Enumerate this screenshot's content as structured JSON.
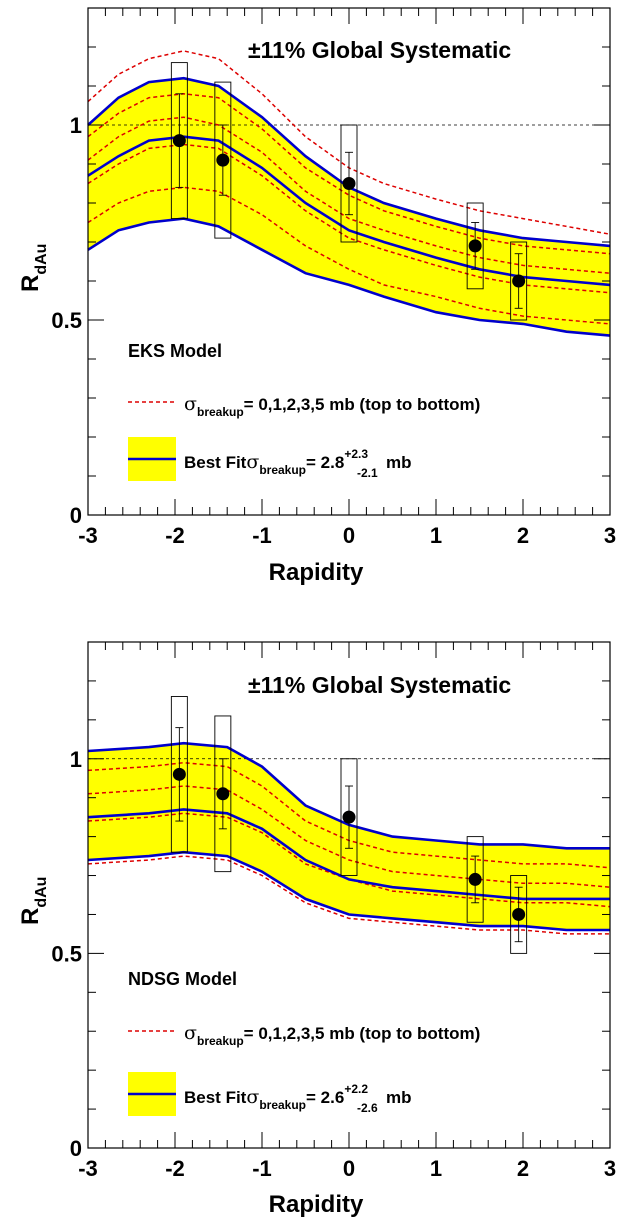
{
  "chart_data": [
    {
      "type": "line",
      "model_label": "EKS Model",
      "systematic_label": "±11% Global Systematic",
      "xlabel": "Rapidity",
      "ylabel": "R",
      "ylabel_sub": "dAu",
      "xlim": [
        -3,
        3
      ],
      "ylim": [
        0,
        1.3
      ],
      "x_ticks": [
        "-3",
        "-2",
        "-1",
        "0",
        "1",
        "2",
        "3"
      ],
      "y_ticks": [
        "0",
        "0.5",
        "1"
      ],
      "reference_line": 1.0,
      "legend": {
        "dashed": {
          "sigma": "σ",
          "sub": "breakup",
          "text": "= 0,1,2,3,5 mb (top to bottom)"
        },
        "fit": {
          "prefix": "Best Fit",
          "sigma": "σ",
          "sub": "breakup",
          "eq": "= 2.8",
          "sup": "+2.3",
          "low": "-2.1",
          "unit": "mb"
        }
      },
      "colors": {
        "band": "#ffff00",
        "fit_line": "#0000cc",
        "dashed": "#dd0000"
      },
      "x": [
        -3,
        -2.65,
        -2.3,
        -1.9,
        -1.5,
        -1.0,
        -0.5,
        0.0,
        0.4,
        1.0,
        1.5,
        2.0,
        2.5,
        3.0
      ],
      "series": [
        {
          "name": "σ = 0 mb",
          "style": "dashed",
          "values": [
            1.06,
            1.13,
            1.17,
            1.19,
            1.17,
            1.08,
            0.97,
            0.89,
            0.85,
            0.81,
            0.78,
            0.76,
            0.74,
            0.72
          ]
        },
        {
          "name": "σ = 1 mb",
          "style": "dashed",
          "values": [
            0.97,
            1.03,
            1.07,
            1.08,
            1.07,
            0.99,
            0.89,
            0.82,
            0.78,
            0.74,
            0.71,
            0.69,
            0.68,
            0.67
          ]
        },
        {
          "name": "σ = 2 mb",
          "style": "dashed",
          "values": [
            0.91,
            0.97,
            1.01,
            1.02,
            1.0,
            0.93,
            0.83,
            0.76,
            0.73,
            0.69,
            0.66,
            0.64,
            0.63,
            0.62
          ]
        },
        {
          "name": "σ = 3 mb",
          "style": "dashed",
          "values": [
            0.85,
            0.9,
            0.94,
            0.95,
            0.94,
            0.87,
            0.78,
            0.71,
            0.68,
            0.64,
            0.61,
            0.59,
            0.58,
            0.57
          ]
        },
        {
          "name": "σ = 5 mb",
          "style": "dashed",
          "values": [
            0.75,
            0.8,
            0.83,
            0.84,
            0.83,
            0.77,
            0.69,
            0.63,
            0.59,
            0.56,
            0.53,
            0.51,
            0.5,
            0.49
          ]
        },
        {
          "name": "band upper",
          "style": "solid",
          "values": [
            1.0,
            1.07,
            1.11,
            1.12,
            1.1,
            1.02,
            0.92,
            0.84,
            0.8,
            0.76,
            0.73,
            0.71,
            0.7,
            0.69
          ]
        },
        {
          "name": "best fit",
          "style": "solid",
          "values": [
            0.87,
            0.92,
            0.96,
            0.97,
            0.96,
            0.89,
            0.8,
            0.73,
            0.7,
            0.66,
            0.63,
            0.61,
            0.6,
            0.59
          ]
        },
        {
          "name": "band lower",
          "style": "solid",
          "values": [
            0.68,
            0.73,
            0.75,
            0.76,
            0.74,
            0.68,
            0.62,
            0.59,
            0.56,
            0.52,
            0.5,
            0.49,
            0.47,
            0.46
          ]
        }
      ],
      "points": [
        {
          "x": -1.95,
          "y": 0.96,
          "stat": 0.12,
          "sys": 0.2
        },
        {
          "x": -1.45,
          "y": 0.91,
          "stat": 0.09,
          "sys": 0.2
        },
        {
          "x": 0.0,
          "y": 0.85,
          "stat": 0.08,
          "sys": 0.15
        },
        {
          "x": 1.45,
          "y": 0.69,
          "stat": 0.06,
          "sys": 0.11
        },
        {
          "x": 1.95,
          "y": 0.6,
          "stat": 0.07,
          "sys": 0.1
        }
      ]
    },
    {
      "type": "line",
      "model_label": "NDSG Model",
      "systematic_label": "±11% Global Systematic",
      "xlabel": "Rapidity",
      "ylabel": "R",
      "ylabel_sub": "dAu",
      "xlim": [
        -3,
        3
      ],
      "ylim": [
        0,
        1.3
      ],
      "x_ticks": [
        "-3",
        "-2",
        "-1",
        "0",
        "1",
        "2",
        "3"
      ],
      "y_ticks": [
        "0",
        "0.5",
        "1"
      ],
      "reference_line": 1.0,
      "legend": {
        "dashed": {
          "sigma": "σ",
          "sub": "breakup",
          "text": "= 0,1,2,3,5 mb (top to bottom)"
        },
        "fit": {
          "prefix": "Best Fit",
          "sigma": "σ",
          "sub": "breakup",
          "eq": "= 2.6",
          "sup": "+2.2",
          "low": "-2.6",
          "unit": "mb"
        }
      },
      "colors": {
        "band": "#ffff00",
        "fit_line": "#0000cc",
        "dashed": "#dd0000"
      },
      "x": [
        -3,
        -2.3,
        -1.9,
        -1.4,
        -1.0,
        -0.5,
        0.0,
        0.5,
        1.0,
        1.5,
        2.0,
        2.5,
        3.0
      ],
      "series": [
        {
          "name": "σ = 0 mb",
          "style": "dashed",
          "values": [
            1.02,
            1.03,
            1.04,
            1.03,
            0.98,
            0.88,
            0.83,
            0.8,
            0.79,
            0.78,
            0.78,
            0.77,
            0.77
          ]
        },
        {
          "name": "σ = 1 mb",
          "style": "dashed",
          "values": [
            0.97,
            0.98,
            0.99,
            0.98,
            0.93,
            0.84,
            0.79,
            0.76,
            0.75,
            0.74,
            0.73,
            0.73,
            0.72
          ]
        },
        {
          "name": "σ = 2 mb",
          "style": "dashed",
          "values": [
            0.91,
            0.92,
            0.93,
            0.92,
            0.87,
            0.79,
            0.74,
            0.71,
            0.7,
            0.69,
            0.68,
            0.68,
            0.67
          ]
        },
        {
          "name": "σ = 3 mb",
          "style": "dashed",
          "values": [
            0.84,
            0.85,
            0.86,
            0.85,
            0.81,
            0.73,
            0.69,
            0.66,
            0.65,
            0.64,
            0.63,
            0.63,
            0.62
          ]
        },
        {
          "name": "σ = 5 mb",
          "style": "dashed",
          "values": [
            0.73,
            0.74,
            0.75,
            0.74,
            0.7,
            0.63,
            0.59,
            0.58,
            0.57,
            0.56,
            0.56,
            0.55,
            0.55
          ]
        },
        {
          "name": "band upper",
          "style": "solid",
          "values": [
            1.02,
            1.03,
            1.04,
            1.03,
            0.98,
            0.88,
            0.83,
            0.8,
            0.79,
            0.78,
            0.78,
            0.77,
            0.77
          ]
        },
        {
          "name": "best fit",
          "style": "solid",
          "values": [
            0.85,
            0.86,
            0.87,
            0.86,
            0.82,
            0.74,
            0.69,
            0.67,
            0.66,
            0.65,
            0.64,
            0.64,
            0.64
          ]
        },
        {
          "name": "band lower",
          "style": "solid",
          "values": [
            0.74,
            0.75,
            0.76,
            0.75,
            0.71,
            0.64,
            0.6,
            0.59,
            0.58,
            0.57,
            0.57,
            0.56,
            0.56
          ]
        }
      ],
      "points": [
        {
          "x": -1.95,
          "y": 0.96,
          "stat": 0.12,
          "sys": 0.2
        },
        {
          "x": -1.45,
          "y": 0.91,
          "stat": 0.09,
          "sys": 0.2
        },
        {
          "x": 0.0,
          "y": 0.85,
          "stat": 0.08,
          "sys": 0.15
        },
        {
          "x": 1.45,
          "y": 0.69,
          "stat": 0.06,
          "sys": 0.11
        },
        {
          "x": 1.95,
          "y": 0.6,
          "stat": 0.07,
          "sys": 0.1
        }
      ]
    }
  ]
}
